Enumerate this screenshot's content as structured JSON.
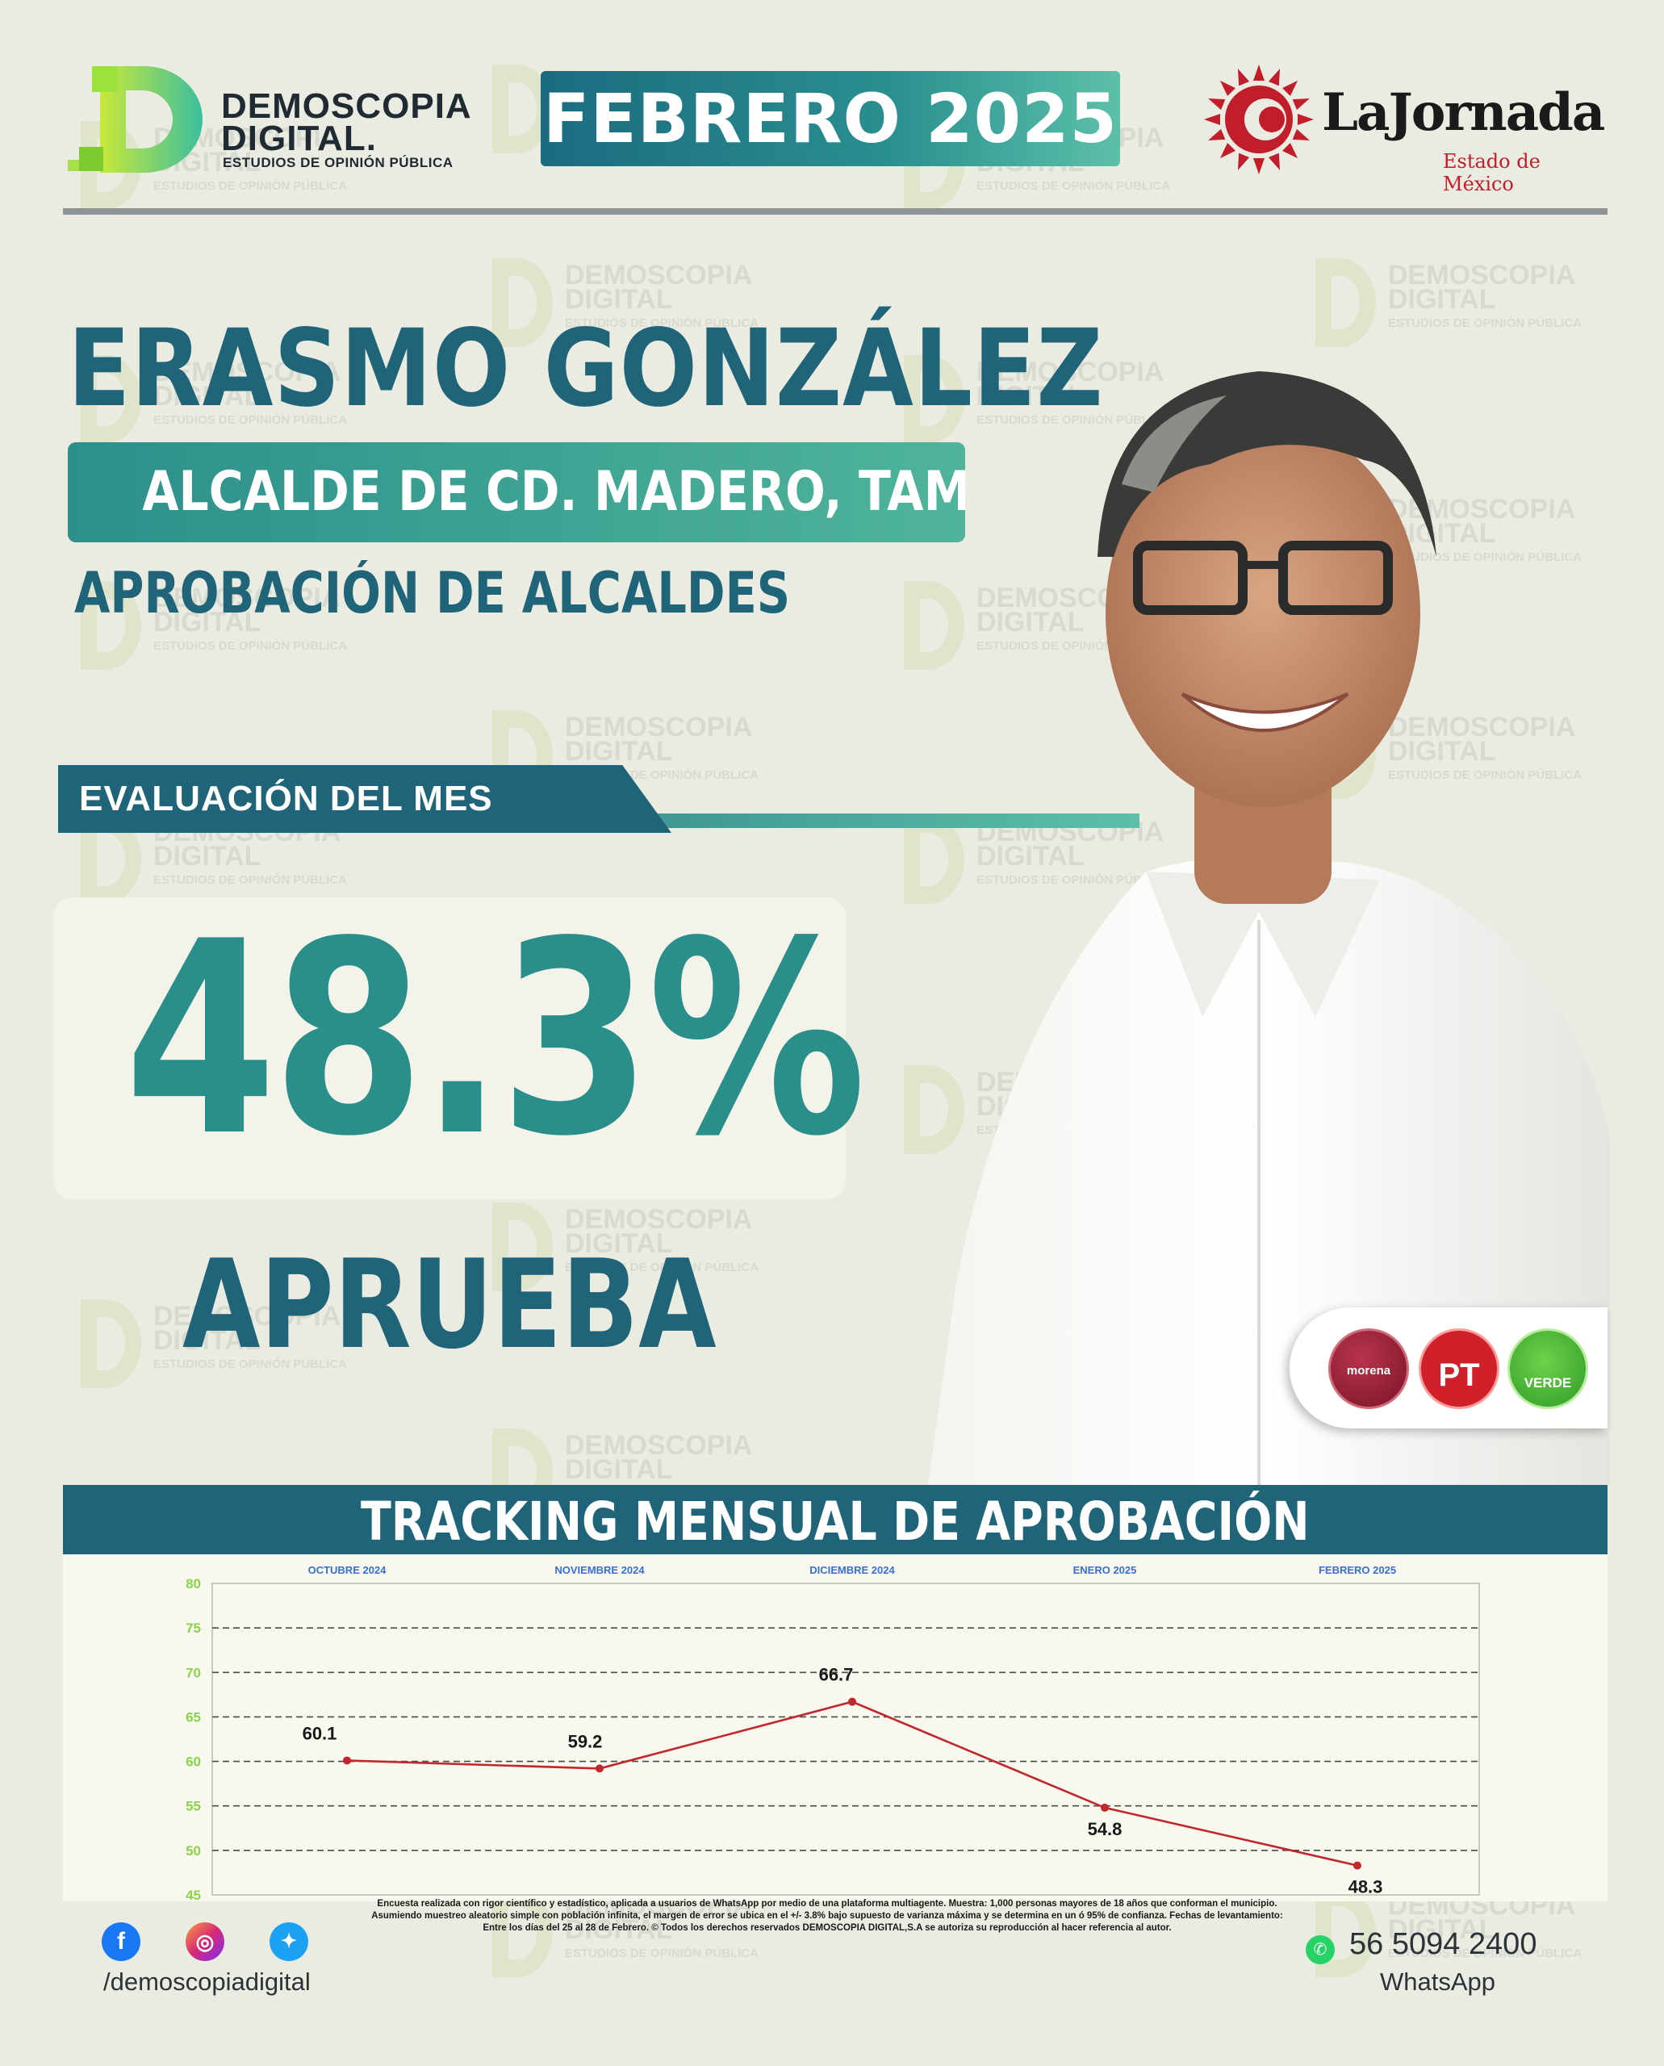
{
  "header": {
    "brand": {
      "line1": "DEMOSCOPIA",
      "line2": "DIGITAL.",
      "tagline": "ESTUDIOS DE OPINIÓN PÚBLICA"
    },
    "month": "FEBRERO 2025",
    "partner": {
      "name": "LaJornada",
      "region": "Estado de México"
    }
  },
  "subject": {
    "name": "ERASMO GONZÁLEZ",
    "role": "ALCALDE DE CD. MADERO, TAMPS.",
    "category": "APROBACIÓN DE ALCALDES"
  },
  "evaluation": {
    "label": "EVALUACIÓN DEL MES",
    "value": "48.3%",
    "caption": "APRUEBA"
  },
  "parties": [
    "morena",
    "PT",
    "VERDE"
  ],
  "chart_title": "TRACKING MENSUAL DE APROBACIÓN",
  "chart_data": {
    "type": "line",
    "categories": [
      "OCTUBRE 2024",
      "NOVIEMBRE 2024",
      "DICIEMBRE 2024",
      "ENERO 2025",
      "FEBRERO 2025"
    ],
    "series": [
      {
        "values": [
          60.1,
          59.2,
          66.7,
          54.8,
          48.3
        ]
      }
    ],
    "data_labels": [
      "60.1",
      "59.2",
      "66.7",
      "54.8",
      "48.3"
    ],
    "ylim": [
      45,
      80
    ],
    "yticks": [
      45,
      50,
      55,
      60,
      65,
      70,
      75,
      80
    ],
    "grid": true,
    "colors": {
      "line": "#c0282d",
      "ytick": "#8bd348",
      "xtick": "#3a6fd1"
    }
  },
  "footer": {
    "handle": "/demoscopiadigital",
    "disclaimer": "Encuesta realizada con rigor científico y estadístico, aplicada a usuarios de WhatsApp por medio de una plataforma multiagente. Muestra: 1,000 personas mayores de 18 años que conforman el municipio. Asumiendo muestreo aleatorio simple con población infinita, el margen de error se ubica en el +/- 3.8% bajo supuesto de varianza máxima y se determina en un ó 95% de confianza. Fechas de levantamiento: Entre los días del 25 al 28 de Febrero. © Todos los derechos reservados DEMOSCOPIA DIGITAL,S.A se autoriza su reproducción al hacer referencia al autor.",
    "phone": "56 5094 2400",
    "phone_label": "WhatsApp",
    "social_icons": [
      "facebook-icon",
      "instagram-icon",
      "twitter-icon"
    ]
  },
  "colors": {
    "primary": "#1f6478",
    "accent": "#2a8f8b",
    "highlight": "#5cc0a9",
    "brand_green": "#8bd348"
  }
}
